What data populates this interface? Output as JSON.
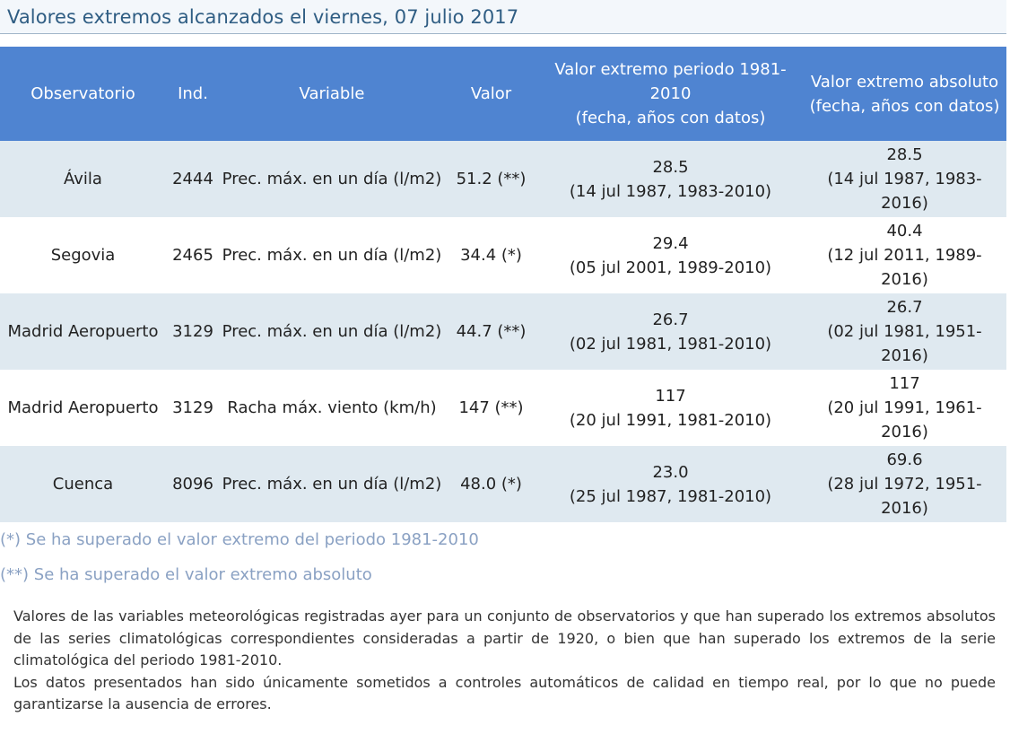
{
  "title": "Valores extremos alcanzados el viernes, 07 julio 2017",
  "table": {
    "headers": {
      "observatorio": "Observatorio",
      "ind": "Ind.",
      "variable": "Variable",
      "valor": "Valor",
      "periodo_line1": "Valor extremo periodo 1981-2010",
      "periodo_line2": "(fecha, años con datos)",
      "absoluto_line1": "Valor extremo absoluto",
      "absoluto_line2": "(fecha, años con datos)"
    },
    "rows": [
      {
        "observatorio": "Ávila",
        "ind": "2444",
        "variable": "Prec. máx. en un día (l/m2)",
        "valor": "51.2 (**)",
        "periodo_valor": "28.5",
        "periodo_fecha": "(14 jul 1987, 1983-2010)",
        "absoluto_valor": "28.5",
        "absoluto_fecha": "(14 jul 1987, 1983-2016)"
      },
      {
        "observatorio": "Segovia",
        "ind": "2465",
        "variable": "Prec. máx. en un día (l/m2)",
        "valor": "34.4 (*)",
        "periodo_valor": "29.4",
        "periodo_fecha": "(05 jul 2001, 1989-2010)",
        "absoluto_valor": "40.4",
        "absoluto_fecha": "(12 jul 2011, 1989-2016)"
      },
      {
        "observatorio": "Madrid Aeropuerto",
        "ind": "3129",
        "variable": "Prec. máx. en un día (l/m2)",
        "valor": "44.7 (**)",
        "periodo_valor": "26.7",
        "periodo_fecha": "(02 jul 1981, 1981-2010)",
        "absoluto_valor": "26.7",
        "absoluto_fecha": "(02 jul 1981, 1951-2016)"
      },
      {
        "observatorio": "Madrid Aeropuerto",
        "ind": "3129",
        "variable": "Racha máx. viento (km/h)",
        "valor": "147 (**)",
        "periodo_valor": "117",
        "periodo_fecha": "(20 jul 1991, 1981-2010)",
        "absoluto_valor": "117",
        "absoluto_fecha": "(20 jul 1991, 1961-2016)"
      },
      {
        "observatorio": "Cuenca",
        "ind": "8096",
        "variable": "Prec. máx. en un día (l/m2)",
        "valor": "48.0 (*)",
        "periodo_valor": "23.0",
        "periodo_fecha": "(25 jul 1987, 1981-2010)",
        "absoluto_valor": "69.6",
        "absoluto_fecha": "(28 jul 1972, 1951-2016)"
      }
    ]
  },
  "notes": {
    "single": "(*) Se ha superado el valor extremo del periodo 1981-2010",
    "double": "(**) Se ha superado el valor extremo absoluto"
  },
  "description": {
    "paragraph1": "Valores de las variables meteorológicas registradas ayer para un conjunto de observatorios y que han superado los extremos absolutos de las series climatológicas correspondientes consideradas a partir de 1920, o bien que han superado los extremos de la serie climatológica del periodo 1981-2010.",
    "paragraph2": "Los datos presentados han sido únicamente sometidos a controles automáticos de calidad en tiempo real, por lo que no puede garantizarse la ausencia de errores."
  },
  "colors": {
    "header_bg": "#4f84d1",
    "row_alt_bg": "#dfe9f0",
    "title_text": "#2f5d83",
    "note_text": "#8aa1c3"
  }
}
